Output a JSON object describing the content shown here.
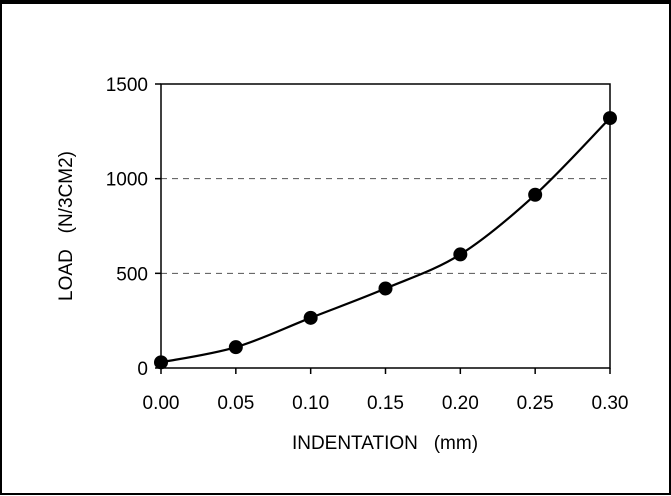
{
  "chart_data": {
    "type": "scatter",
    "title": "",
    "xlabel": "INDENTATION   (mm)",
    "ylabel": "LOAD   (N/3CM2)",
    "xlim": [
      0,
      0.3
    ],
    "ylim": [
      0,
      1500
    ],
    "xticks": [
      0,
      0.05,
      0.1,
      0.15,
      0.2,
      0.25,
      0.3
    ],
    "xtick_labels": [
      "0.00",
      "0.05",
      "0.10",
      "0.15",
      "0.20",
      "0.25",
      "0.30"
    ],
    "yticks": [
      0,
      500,
      1000,
      1500
    ],
    "ytick_labels": [
      "0",
      "500",
      "1000",
      "1500"
    ],
    "grid": {
      "y": true,
      "x": false,
      "style": "dashed",
      "lines_at": [
        500,
        1000
      ]
    },
    "legend": "none",
    "smooth_line": true,
    "series": [
      {
        "x": [
          0,
          0.05,
          0.1,
          0.15,
          0.2,
          0.25,
          0.3
        ],
        "y": [
          30,
          110,
          265,
          420,
          600,
          915,
          1320
        ]
      }
    ],
    "colors": {
      "marker": "#000000",
      "line": "#000000",
      "grid": "#555555"
    }
  }
}
